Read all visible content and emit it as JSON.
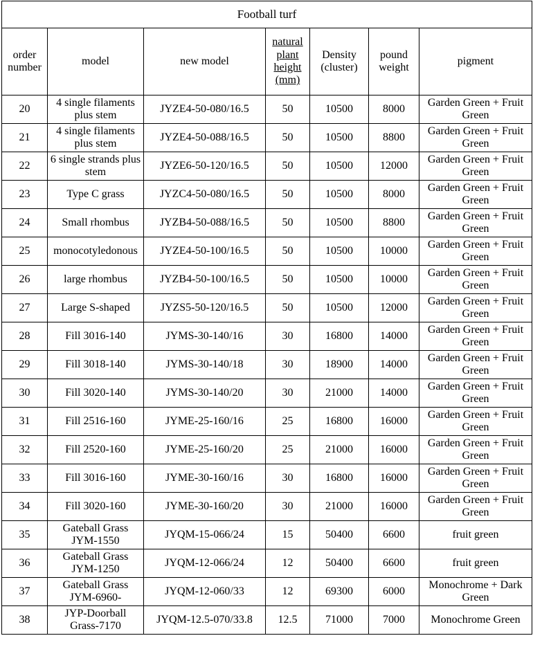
{
  "title": "Football turf",
  "columns": [
    {
      "key": "order",
      "label": "order number",
      "underline": false
    },
    {
      "key": "model",
      "label": "model",
      "underline": false
    },
    {
      "key": "new_model",
      "label": "new model",
      "underline": false
    },
    {
      "key": "height",
      "label": "natural plant height (mm)",
      "underline": true
    },
    {
      "key": "density",
      "label": "Density (cluster)",
      "underline": false
    },
    {
      "key": "weight",
      "label": "pound weight",
      "underline": false
    },
    {
      "key": "pigment",
      "label": "pigment",
      "underline": false
    }
  ],
  "rows": [
    {
      "order": "20",
      "model": "4 single filaments plus stem",
      "new_model": "JYZE4-50-080/16.5",
      "height": "50",
      "density": "10500",
      "weight": "8000",
      "pigment": "Garden Green + Fruit Green"
    },
    {
      "order": "21",
      "model": "4 single filaments plus stem",
      "new_model": "JYZE4-50-088/16.5",
      "height": "50",
      "density": "10500",
      "weight": "8800",
      "pigment": "Garden Green + Fruit Green"
    },
    {
      "order": "22",
      "model": "6 single strands plus stem",
      "new_model": "JYZE6-50-120/16.5",
      "height": "50",
      "density": "10500",
      "weight": "12000",
      "pigment": "Garden Green + Fruit Green"
    },
    {
      "order": "23",
      "model": "Type C grass",
      "new_model": "JYZC4-50-080/16.5",
      "height": "50",
      "density": "10500",
      "weight": "8000",
      "pigment": "Garden Green + Fruit Green"
    },
    {
      "order": "24",
      "model": "Small rhombus",
      "new_model": "JYZB4-50-088/16.5",
      "height": "50",
      "density": "10500",
      "weight": "8800",
      "pigment": "Garden Green + Fruit Green"
    },
    {
      "order": "25",
      "model": "monocotyledonous",
      "new_model": "JYZE4-50-100/16.5",
      "height": "50",
      "density": "10500",
      "weight": "10000",
      "pigment": "Garden Green + Fruit Green"
    },
    {
      "order": "26",
      "model": "large rhombus",
      "new_model": "JYZB4-50-100/16.5",
      "height": "50",
      "density": "10500",
      "weight": "10000",
      "pigment": "Garden Green + Fruit Green"
    },
    {
      "order": "27",
      "model": "Large S-shaped",
      "new_model": "JYZS5-50-120/16.5",
      "height": "50",
      "density": "10500",
      "weight": "12000",
      "pigment": "Garden Green + Fruit Green"
    },
    {
      "order": "28",
      "model": "Fill 3016-140",
      "new_model": "JYMS-30-140/16",
      "height": "30",
      "density": "16800",
      "weight": "14000",
      "pigment": "Garden Green + Fruit Green"
    },
    {
      "order": "29",
      "model": "Fill 3018-140",
      "new_model": "JYMS-30-140/18",
      "height": "30",
      "density": "18900",
      "weight": "14000",
      "pigment": "Garden Green + Fruit Green"
    },
    {
      "order": "30",
      "model": "Fill 3020-140",
      "new_model": "JYMS-30-140/20",
      "height": "30",
      "density": "21000",
      "weight": "14000",
      "pigment": "Garden Green + Fruit Green"
    },
    {
      "order": "31",
      "model": "Fill 2516-160",
      "new_model": "JYME-25-160/16",
      "height": "25",
      "density": "16800",
      "weight": "16000",
      "pigment": "Garden Green + Fruit Green"
    },
    {
      "order": "32",
      "model": "Fill 2520-160",
      "new_model": "JYME-25-160/20",
      "height": "25",
      "density": "21000",
      "weight": "16000",
      "pigment": "Garden Green + Fruit Green"
    },
    {
      "order": "33",
      "model": "Fill 3016-160",
      "new_model": "JYME-30-160/16",
      "height": "30",
      "density": "16800",
      "weight": "16000",
      "pigment": "Garden Green + Fruit Green"
    },
    {
      "order": "34",
      "model": "Fill 3020-160",
      "new_model": "JYME-30-160/20",
      "height": "30",
      "density": "21000",
      "weight": "16000",
      "pigment": "Garden Green + Fruit Green"
    },
    {
      "order": "35",
      "model": "Gateball Grass JYM-1550",
      "new_model": "JYQM-15-066/24",
      "height": "15",
      "density": "50400",
      "weight": "6600",
      "pigment": "fruit green"
    },
    {
      "order": "36",
      "model": "Gateball Grass JYM-1250",
      "new_model": "JYQM-12-066/24",
      "height": "12",
      "density": "50400",
      "weight": "6600",
      "pigment": "fruit green"
    },
    {
      "order": "37",
      "model": "Gateball Grass JYM-6960-",
      "new_model": "JYQM-12-060/33",
      "height": "12",
      "density": "69300",
      "weight": "6000",
      "pigment": "Monochrome + Dark Green"
    },
    {
      "order": "38",
      "model": "JYP-Doorball Grass-7170",
      "new_model": "JYQM-12.5-070/33.8",
      "height": "12.5",
      "density": "71000",
      "weight": "7000",
      "pigment": "Monochrome Green"
    }
  ]
}
